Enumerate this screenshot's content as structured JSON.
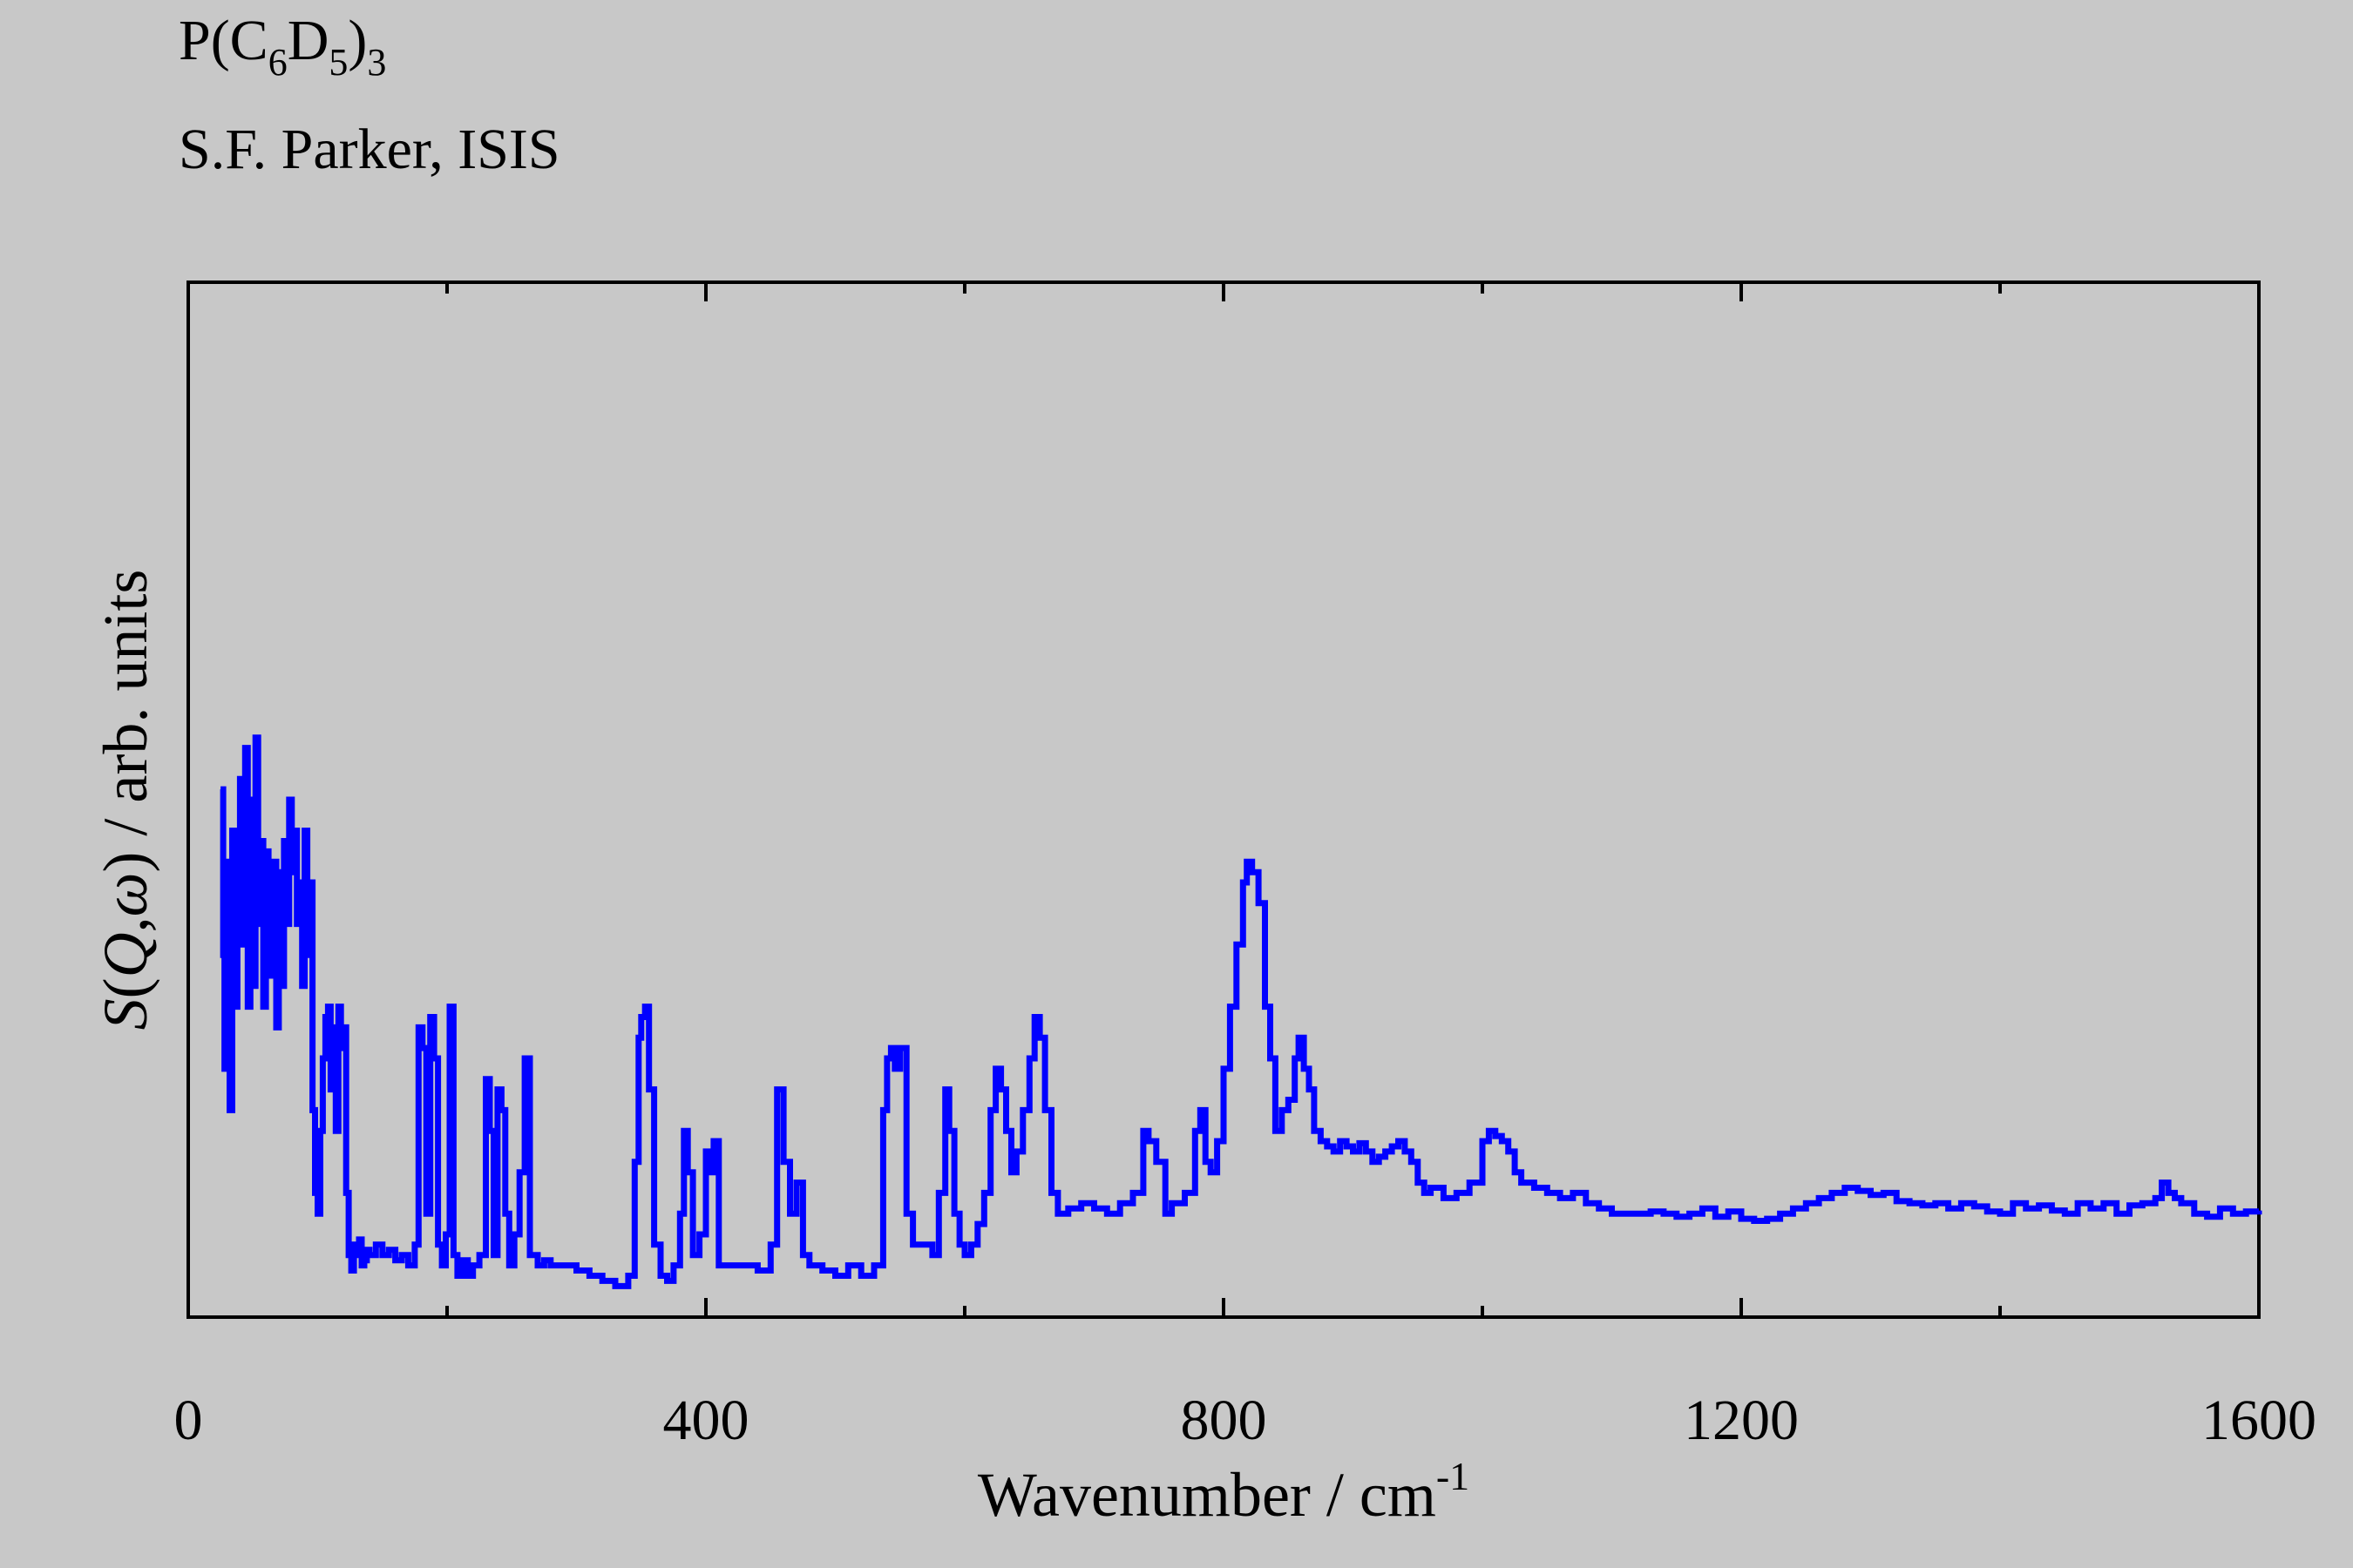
{
  "header": {
    "formula": {
      "p": "P(C",
      "sub6": "6",
      "d": "D",
      "sub5": "5",
      "close": ")",
      "sub3": "3"
    },
    "author": "S.F. Parker, ISIS"
  },
  "chart_data": {
    "type": "line",
    "series_color": "#0000ff",
    "background": "#c8c8c8",
    "xlabel": {
      "main": "Wavenumber / cm",
      "sup": "-1"
    },
    "ylabel": {
      "s": "S",
      "paren_open": "(",
      "q": "Q",
      "comma": ",",
      "w": "ω",
      "paren_close": ")",
      "rest": " / arb. units"
    },
    "xlim": [
      0,
      1600
    ],
    "ylim": [
      0,
      1
    ],
    "x_ticks": [
      "0",
      "400",
      "800",
      "1200",
      "1600"
    ],
    "y_tick_labels": false,
    "grid": false,
    "step": true,
    "series": [
      {
        "points": [
          [
            25,
            0.51
          ],
          [
            27,
            0.35
          ],
          [
            28,
            0.24
          ],
          [
            30,
            0.44
          ],
          [
            32,
            0.2
          ],
          [
            34,
            0.47
          ],
          [
            36,
            0.3
          ],
          [
            38,
            0.41
          ],
          [
            40,
            0.52
          ],
          [
            42,
            0.36
          ],
          [
            44,
            0.55
          ],
          [
            46,
            0.3
          ],
          [
            48,
            0.5
          ],
          [
            50,
            0.32
          ],
          [
            52,
            0.56
          ],
          [
            54,
            0.38
          ],
          [
            56,
            0.46
          ],
          [
            58,
            0.3
          ],
          [
            60,
            0.45
          ],
          [
            62,
            0.41
          ],
          [
            64,
            0.33
          ],
          [
            66,
            0.44
          ],
          [
            68,
            0.28
          ],
          [
            70,
            0.43
          ],
          [
            72,
            0.32
          ],
          [
            74,
            0.46
          ],
          [
            76,
            0.38
          ],
          [
            78,
            0.5
          ],
          [
            80,
            0.43
          ],
          [
            82,
            0.47
          ],
          [
            84,
            0.38
          ],
          [
            86,
            0.42
          ],
          [
            88,
            0.32
          ],
          [
            90,
            0.47
          ],
          [
            92,
            0.35
          ],
          [
            94,
            0.42
          ],
          [
            96,
            0.2
          ],
          [
            98,
            0.12
          ],
          [
            100,
            0.1
          ],
          [
            102,
            0.18
          ],
          [
            104,
            0.25
          ],
          [
            106,
            0.29
          ],
          [
            108,
            0.3
          ],
          [
            110,
            0.22
          ],
          [
            112,
            0.28
          ],
          [
            114,
            0.18
          ],
          [
            116,
            0.3
          ],
          [
            118,
            0.26
          ],
          [
            120,
            0.28
          ],
          [
            122,
            0.12
          ],
          [
            124,
            0.06
          ],
          [
            126,
            0.045
          ],
          [
            128,
            0.07
          ],
          [
            130,
            0.06
          ],
          [
            132,
            0.075
          ],
          [
            134,
            0.05
          ],
          [
            136,
            0.055
          ],
          [
            138,
            0.065
          ],
          [
            140,
            0.06
          ],
          [
            145,
            0.07
          ],
          [
            150,
            0.06
          ],
          [
            155,
            0.065
          ],
          [
            160,
            0.055
          ],
          [
            165,
            0.06
          ],
          [
            170,
            0.05
          ],
          [
            175,
            0.07
          ],
          [
            178,
            0.28
          ],
          [
            181,
            0.26
          ],
          [
            184,
            0.1
          ],
          [
            187,
            0.29
          ],
          [
            190,
            0.25
          ],
          [
            193,
            0.07
          ],
          [
            196,
            0.05
          ],
          [
            199,
            0.08
          ],
          [
            202,
            0.3
          ],
          [
            205,
            0.06
          ],
          [
            208,
            0.04
          ],
          [
            212,
            0.055
          ],
          [
            216,
            0.04
          ],
          [
            220,
            0.05
          ],
          [
            225,
            0.06
          ],
          [
            230,
            0.23
          ],
          [
            233,
            0.18
          ],
          [
            236,
            0.06
          ],
          [
            239,
            0.22
          ],
          [
            242,
            0.2
          ],
          [
            245,
            0.1
          ],
          [
            248,
            0.05
          ],
          [
            252,
            0.08
          ],
          [
            256,
            0.14
          ],
          [
            260,
            0.25
          ],
          [
            264,
            0.06
          ],
          [
            270,
            0.05
          ],
          [
            275,
            0.055
          ],
          [
            280,
            0.05
          ],
          [
            290,
            0.05
          ],
          [
            300,
            0.045
          ],
          [
            310,
            0.04
          ],
          [
            320,
            0.035
          ],
          [
            330,
            0.03
          ],
          [
            340,
            0.04
          ],
          [
            345,
            0.15
          ],
          [
            348,
            0.27
          ],
          [
            350,
            0.29
          ],
          [
            353,
            0.3
          ],
          [
            356,
            0.22
          ],
          [
            360,
            0.07
          ],
          [
            365,
            0.04
          ],
          [
            370,
            0.035
          ],
          [
            375,
            0.05
          ],
          [
            380,
            0.1
          ],
          [
            383,
            0.18
          ],
          [
            386,
            0.14
          ],
          [
            390,
            0.06
          ],
          [
            395,
            0.08
          ],
          [
            400,
            0.16
          ],
          [
            403,
            0.14
          ],
          [
            406,
            0.17
          ],
          [
            410,
            0.05
          ],
          [
            420,
            0.05
          ],
          [
            430,
            0.05
          ],
          [
            440,
            0.045
          ],
          [
            450,
            0.07
          ],
          [
            455,
            0.22
          ],
          [
            460,
            0.15
          ],
          [
            465,
            0.1
          ],
          [
            470,
            0.13
          ],
          [
            475,
            0.06
          ],
          [
            480,
            0.05
          ],
          [
            490,
            0.045
          ],
          [
            500,
            0.04
          ],
          [
            510,
            0.05
          ],
          [
            520,
            0.04
          ],
          [
            530,
            0.05
          ],
          [
            537,
            0.2
          ],
          [
            540,
            0.25
          ],
          [
            543,
            0.26
          ],
          [
            546,
            0.24
          ],
          [
            550,
            0.26
          ],
          [
            555,
            0.1
          ],
          [
            560,
            0.07
          ],
          [
            570,
            0.07
          ],
          [
            575,
            0.06
          ],
          [
            580,
            0.12
          ],
          [
            585,
            0.22
          ],
          [
            588,
            0.18
          ],
          [
            592,
            0.1
          ],
          [
            596,
            0.07
          ],
          [
            600,
            0.06
          ],
          [
            605,
            0.07
          ],
          [
            610,
            0.09
          ],
          [
            615,
            0.12
          ],
          [
            620,
            0.2
          ],
          [
            624,
            0.24
          ],
          [
            628,
            0.22
          ],
          [
            632,
            0.18
          ],
          [
            636,
            0.14
          ],
          [
            640,
            0.16
          ],
          [
            645,
            0.2
          ],
          [
            650,
            0.25
          ],
          [
            654,
            0.29
          ],
          [
            658,
            0.27
          ],
          [
            662,
            0.2
          ],
          [
            667,
            0.12
          ],
          [
            672,
            0.1
          ],
          [
            680,
            0.105
          ],
          [
            690,
            0.11
          ],
          [
            700,
            0.105
          ],
          [
            710,
            0.1
          ],
          [
            720,
            0.11
          ],
          [
            730,
            0.12
          ],
          [
            738,
            0.18
          ],
          [
            742,
            0.17
          ],
          [
            748,
            0.15
          ],
          [
            755,
            0.1
          ],
          [
            760,
            0.11
          ],
          [
            770,
            0.12
          ],
          [
            778,
            0.18
          ],
          [
            782,
            0.2
          ],
          [
            786,
            0.15
          ],
          [
            790,
            0.14
          ],
          [
            795,
            0.17
          ],
          [
            800,
            0.24
          ],
          [
            805,
            0.3
          ],
          [
            810,
            0.36
          ],
          [
            815,
            0.42
          ],
          [
            818,
            0.44
          ],
          [
            822,
            0.43
          ],
          [
            827,
            0.4
          ],
          [
            832,
            0.3
          ],
          [
            836,
            0.25
          ],
          [
            840,
            0.18
          ],
          [
            845,
            0.2
          ],
          [
            850,
            0.21
          ],
          [
            855,
            0.25
          ],
          [
            858,
            0.27
          ],
          [
            862,
            0.24
          ],
          [
            866,
            0.22
          ],
          [
            870,
            0.18
          ],
          [
            875,
            0.17
          ],
          [
            880,
            0.165
          ],
          [
            885,
            0.16
          ],
          [
            890,
            0.17
          ],
          [
            895,
            0.165
          ],
          [
            900,
            0.16
          ],
          [
            905,
            0.168
          ],
          [
            910,
            0.16
          ],
          [
            915,
            0.15
          ],
          [
            920,
            0.155
          ],
          [
            925,
            0.16
          ],
          [
            930,
            0.165
          ],
          [
            935,
            0.17
          ],
          [
            940,
            0.16
          ],
          [
            945,
            0.15
          ],
          [
            950,
            0.13
          ],
          [
            955,
            0.12
          ],
          [
            960,
            0.125
          ],
          [
            970,
            0.115
          ],
          [
            980,
            0.12
          ],
          [
            990,
            0.13
          ],
          [
            1000,
            0.17
          ],
          [
            1005,
            0.18
          ],
          [
            1010,
            0.175
          ],
          [
            1015,
            0.17
          ],
          [
            1020,
            0.16
          ],
          [
            1025,
            0.14
          ],
          [
            1030,
            0.13
          ],
          [
            1040,
            0.125
          ],
          [
            1050,
            0.12
          ],
          [
            1060,
            0.115
          ],
          [
            1070,
            0.12
          ],
          [
            1080,
            0.11
          ],
          [
            1090,
            0.105
          ],
          [
            1100,
            0.1
          ],
          [
            1110,
            0.1
          ],
          [
            1120,
            0.1
          ],
          [
            1130,
            0.102
          ],
          [
            1140,
            0.1
          ],
          [
            1150,
            0.097
          ],
          [
            1160,
            0.1
          ],
          [
            1170,
            0.105
          ],
          [
            1180,
            0.097
          ],
          [
            1190,
            0.102
          ],
          [
            1200,
            0.095
          ],
          [
            1210,
            0.093
          ],
          [
            1220,
            0.095
          ],
          [
            1230,
            0.1
          ],
          [
            1240,
            0.105
          ],
          [
            1250,
            0.11
          ],
          [
            1260,
            0.115
          ],
          [
            1270,
            0.12
          ],
          [
            1280,
            0.125
          ],
          [
            1290,
            0.122
          ],
          [
            1300,
            0.118
          ],
          [
            1310,
            0.12
          ],
          [
            1320,
            0.112
          ],
          [
            1330,
            0.11
          ],
          [
            1340,
            0.108
          ],
          [
            1350,
            0.11
          ],
          [
            1360,
            0.105
          ],
          [
            1370,
            0.11
          ],
          [
            1380,
            0.107
          ],
          [
            1390,
            0.102
          ],
          [
            1400,
            0.1
          ],
          [
            1410,
            0.11
          ],
          [
            1420,
            0.105
          ],
          [
            1430,
            0.108
          ],
          [
            1440,
            0.103
          ],
          [
            1450,
            0.1
          ],
          [
            1460,
            0.11
          ],
          [
            1470,
            0.105
          ],
          [
            1480,
            0.11
          ],
          [
            1490,
            0.1
          ],
          [
            1500,
            0.108
          ],
          [
            1510,
            0.11
          ],
          [
            1520,
            0.115
          ],
          [
            1525,
            0.13
          ],
          [
            1530,
            0.12
          ],
          [
            1535,
            0.115
          ],
          [
            1540,
            0.11
          ],
          [
            1550,
            0.1
          ],
          [
            1560,
            0.097
          ],
          [
            1570,
            0.105
          ],
          [
            1580,
            0.1
          ],
          [
            1590,
            0.102
          ],
          [
            1600,
            0.103
          ]
        ]
      }
    ]
  }
}
